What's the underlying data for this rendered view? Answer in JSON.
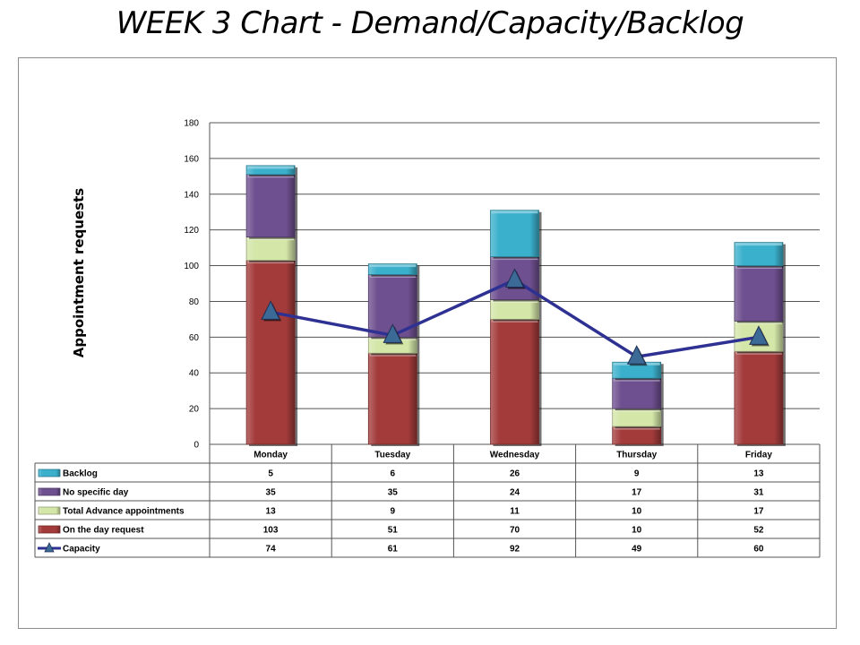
{
  "title": "WEEK 3  Chart - Demand/Capacity/Backlog",
  "chart_data": {
    "type": "bar",
    "stacked": true,
    "categories": [
      "Monday",
      "Tuesday",
      "Wednesday",
      "Thursday",
      "Friday"
    ],
    "ylabel": "Appointment requests",
    "ylim": [
      0,
      180
    ],
    "yticks": [
      0,
      20,
      40,
      60,
      80,
      100,
      120,
      140,
      160,
      180
    ],
    "grid": true,
    "legend": "data-table",
    "series": [
      {
        "name": "On the day request",
        "type": "bar",
        "color": "#a33b3b",
        "values": [
          103,
          51,
          70,
          10,
          52
        ]
      },
      {
        "name": "Total  Advance appointments",
        "type": "bar",
        "color": "#d4e6a8",
        "values": [
          13,
          9,
          11,
          10,
          17
        ]
      },
      {
        "name": "No specific day",
        "type": "bar",
        "color": "#6e4f8f",
        "values": [
          35,
          35,
          24,
          17,
          31
        ]
      },
      {
        "name": "Backlog",
        "type": "bar",
        "color": "#3bb0cc",
        "values": [
          5,
          6,
          26,
          9,
          13
        ]
      },
      {
        "name": "Capacity",
        "type": "line",
        "color": "#2e3192",
        "marker_color": "#3c6a96",
        "values": [
          74,
          61,
          92,
          49,
          60
        ]
      }
    ],
    "table_row_order": [
      "Backlog",
      "No specific day",
      "Total  Advance appointments",
      "On the day request",
      "Capacity"
    ]
  }
}
